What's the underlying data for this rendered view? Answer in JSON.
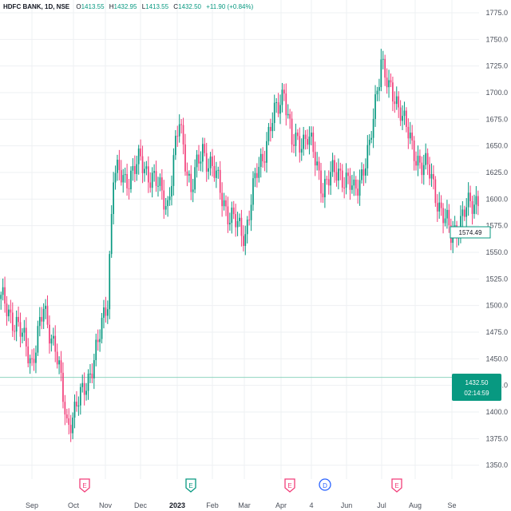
{
  "header": {
    "symbol": "HDFC BANK, 1D, NSE",
    "open_label": "O",
    "open_value": "1413.55",
    "high_label": "H",
    "high_value": "1432.95",
    "low_label": "L",
    "low_value": "1413.55",
    "close_label": "C",
    "close_value": "1432.50",
    "change": "+11.90 (+0.84%)"
  },
  "colors": {
    "up": "#089981",
    "down": "#f23f7a",
    "grid": "#eef0f3",
    "price_line": "#8fd4bf",
    "current_badge": "#089981",
    "earnings_marker": "#f23f7a",
    "earnings_marker_up": "#089981",
    "dividend_marker": "#2962ff",
    "crosshair_box": "#089981"
  },
  "price_badge": {
    "line1": "1432.50",
    "line2": "02:14:59"
  },
  "crosshair_label": "1574.49",
  "markers": [
    {
      "type": "earnings",
      "glyph": "E",
      "date": "Oct",
      "tone": "down"
    },
    {
      "type": "earnings",
      "glyph": "E",
      "date": "Jan",
      "tone": "up"
    },
    {
      "type": "earnings",
      "glyph": "E",
      "date": "Apr",
      "tone": "down"
    },
    {
      "type": "dividend",
      "glyph": "D",
      "date": "May",
      "tone": "div"
    },
    {
      "type": "earnings",
      "glyph": "E",
      "date": "Jul",
      "tone": "down"
    }
  ],
  "chart_data": {
    "type": "candlestick",
    "title": "HDFC BANK, 1D, NSE",
    "y_axis": {
      "ticks": [
        1350,
        1375,
        1400,
        1425,
        1450,
        1475,
        1500,
        1525,
        1550,
        1575,
        1600,
        1625,
        1650,
        1675,
        1700,
        1725,
        1750,
        1775
      ],
      "tick_labels": [
        "1350.0",
        "1375.0",
        "1400.0",
        "1425.0",
        "1450.0",
        "1475.0",
        "1500.0",
        "1525.0",
        "1550.0",
        "1575.0",
        "1600.0",
        "1625.0",
        "1650.0",
        "1675.0",
        "1700.0",
        "1725.0",
        "1750.0",
        "1775.0"
      ],
      "range": [
        1337,
        1787
      ]
    },
    "x_axis": {
      "labels": [
        "Sep",
        "Oct",
        "Nov",
        "Dec",
        "2023",
        "Feb",
        "Mar",
        "Apr",
        "4",
        "Jun",
        "Jul",
        "Aug",
        "Se"
      ],
      "bold_labels": [
        "2023"
      ]
    },
    "current_price": 1432.5,
    "crosshair_price": 1574.49,
    "anchors": [
      [
        0,
        1505
      ],
      [
        8,
        1483
      ],
      [
        16,
        1448
      ],
      [
        22,
        1495
      ],
      [
        28,
        1462
      ],
      [
        34,
        1388
      ],
      [
        42,
        1416
      ],
      [
        50,
        1462
      ],
      [
        55,
        1508
      ],
      [
        58,
        1625
      ],
      [
        64,
        1618
      ],
      [
        72,
        1635
      ],
      [
        78,
        1620
      ],
      [
        86,
        1596
      ],
      [
        92,
        1672
      ],
      [
        98,
        1608
      ],
      [
        104,
        1648
      ],
      [
        112,
        1615
      ],
      [
        118,
        1582
      ],
      [
        126,
        1568
      ],
      [
        132,
        1625
      ],
      [
        140,
        1672
      ],
      [
        146,
        1705
      ],
      [
        150,
        1650
      ],
      [
        158,
        1660
      ],
      [
        166,
        1612
      ],
      [
        174,
        1628
      ],
      [
        182,
        1606
      ],
      [
        190,
        1645
      ],
      [
        196,
        1735
      ],
      [
        200,
        1700
      ],
      [
        206,
        1688
      ],
      [
        212,
        1645
      ],
      [
        220,
        1628
      ],
      [
        226,
        1595
      ],
      [
        232,
        1565
      ],
      [
        240,
        1590
      ],
      [
        246,
        1602
      ]
    ]
  }
}
